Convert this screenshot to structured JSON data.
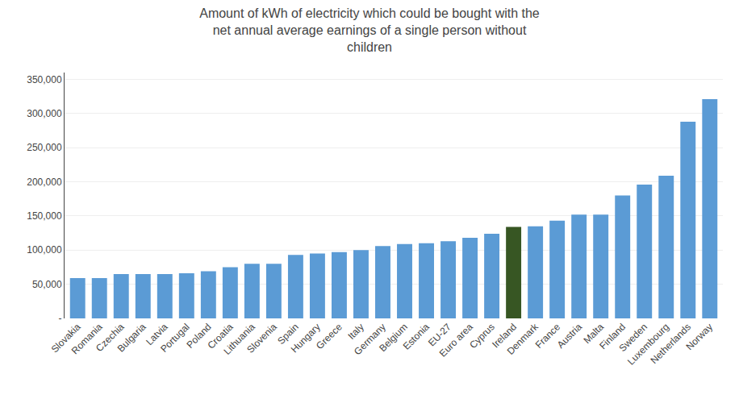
{
  "chart_data": {
    "type": "bar",
    "title": "Amount of kWh of electricity which could be bought with the net annual average earnings of a single person without children",
    "categories": [
      "Slovakia",
      "Romania",
      "Czechia",
      "Bulgaria",
      "Latvia",
      "Portugal",
      "Poland",
      "Croatia",
      "Lithuania",
      "Slovenia",
      "Spain",
      "Hungary",
      "Greece",
      "Italy",
      "Germany",
      "Belgium",
      "Estonia",
      "EU-27",
      "Euro area",
      "Cyprus",
      "Ireland",
      "Denmark",
      "France",
      "Austria",
      "Malta",
      "Finland",
      "Sweden",
      "Luxembourg",
      "Netherlands",
      "Norway"
    ],
    "values": [
      59000,
      59000,
      65000,
      65000,
      65000,
      66000,
      69000,
      75000,
      80000,
      80000,
      93000,
      95000,
      97000,
      100000,
      106000,
      109000,
      110000,
      113000,
      118000,
      124000,
      134000,
      135000,
      143000,
      152000,
      152000,
      180000,
      196000,
      209000,
      288000,
      321000
    ],
    "colors": [
      "#5B9BD5",
      "#5B9BD5",
      "#5B9BD5",
      "#5B9BD5",
      "#5B9BD5",
      "#5B9BD5",
      "#5B9BD5",
      "#5B9BD5",
      "#5B9BD5",
      "#5B9BD5",
      "#5B9BD5",
      "#5B9BD5",
      "#5B9BD5",
      "#5B9BD5",
      "#5B9BD5",
      "#5B9BD5",
      "#5B9BD5",
      "#5B9BD5",
      "#5B9BD5",
      "#5B9BD5",
      "#375623",
      "#5B9BD5",
      "#5B9BD5",
      "#5B9BD5",
      "#5B9BD5",
      "#5B9BD5",
      "#5B9BD5",
      "#5B9BD5",
      "#5B9BD5",
      "#5B9BD5"
    ],
    "ylim": [
      0,
      360000
    ],
    "yticks": [
      {
        "value": 0,
        "label": "-"
      },
      {
        "value": 50000,
        "label": "50,000"
      },
      {
        "value": 100000,
        "label": "100,000"
      },
      {
        "value": 150000,
        "label": "150,000"
      },
      {
        "value": 200000,
        "label": "200,000"
      },
      {
        "value": 250000,
        "label": "250,000"
      },
      {
        "value": 300000,
        "label": "300,000"
      },
      {
        "value": 350000,
        "label": "350,000"
      }
    ],
    "grid": true
  }
}
